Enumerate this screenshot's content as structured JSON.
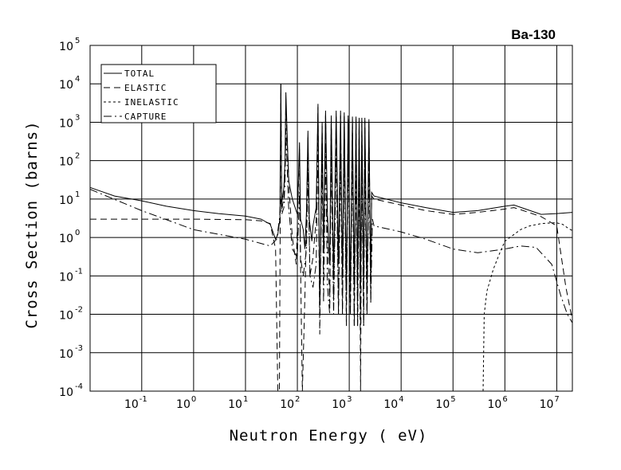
{
  "chart_data": {
    "type": "line",
    "title": "Ba-130",
    "xlabel": "Neutron Energy ( eV)",
    "ylabel": "Cross Section (barns)",
    "xscale": "log",
    "yscale": "log",
    "xlim": [
      0.0101,
      20000000
    ],
    "ylim": [
      0.0001,
      100000
    ],
    "grid": true,
    "legend_position": "top-left",
    "x_ticks": [
      {
        "base": "10",
        "exp": "-1",
        "value": 0.1
      },
      {
        "base": "10",
        "exp": "0",
        "value": 1
      },
      {
        "base": "10",
        "exp": "1",
        "value": 10
      },
      {
        "base": "10",
        "exp": "2",
        "value": 100
      },
      {
        "base": "10",
        "exp": "3",
        "value": 1000
      },
      {
        "base": "10",
        "exp": "4",
        "value": 10000
      },
      {
        "base": "10",
        "exp": "5",
        "value": 100000
      },
      {
        "base": "10",
        "exp": "6",
        "value": 1000000
      },
      {
        "base": "10",
        "exp": "7",
        "value": 10000000
      }
    ],
    "y_ticks": [
      {
        "base": "10",
        "exp": "5",
        "value": 100000
      },
      {
        "base": "10",
        "exp": "4",
        "value": 10000
      },
      {
        "base": "10",
        "exp": "3",
        "value": 1000
      },
      {
        "base": "10",
        "exp": "2",
        "value": 100
      },
      {
        "base": "10",
        "exp": "1",
        "value": 10
      },
      {
        "base": "10",
        "exp": "0",
        "value": 1
      },
      {
        "base": "10",
        "exp": "-1",
        "value": 0.1
      },
      {
        "base": "10",
        "exp": "-2",
        "value": 0.01
      },
      {
        "base": "10",
        "exp": "-3",
        "value": 0.001
      },
      {
        "base": "10",
        "exp": "-4",
        "value": 0.0001
      }
    ],
    "series": [
      {
        "name": "TOTAL",
        "dash": "",
        "points": [
          [
            0.0101,
            20
          ],
          [
            0.03,
            12
          ],
          [
            0.1,
            9
          ],
          [
            0.3,
            6.5
          ],
          [
            1,
            5
          ],
          [
            3,
            4.2
          ],
          [
            10,
            3.6
          ],
          [
            20,
            3
          ],
          [
            30,
            2.2
          ],
          [
            38,
            0.9
          ],
          [
            42,
            1.2
          ],
          [
            46,
            3
          ],
          [
            48,
            10000
          ],
          [
            50,
            8
          ],
          [
            55,
            20
          ],
          [
            58,
            120
          ],
          [
            60,
            6000
          ],
          [
            63,
            700
          ],
          [
            68,
            30
          ],
          [
            80,
            10
          ],
          [
            100,
            4
          ],
          [
            110,
            300
          ],
          [
            115,
            3
          ],
          [
            130,
            1.6
          ],
          [
            140,
            0.5
          ],
          [
            150,
            5
          ],
          [
            160,
            600
          ],
          [
            170,
            3
          ],
          [
            190,
            0.8
          ],
          [
            200,
            2
          ],
          [
            230,
            6
          ],
          [
            250,
            3000
          ],
          [
            270,
            0.02
          ],
          [
            300,
            1000
          ],
          [
            320,
            0.4
          ],
          [
            350,
            2000
          ],
          [
            380,
            4
          ],
          [
            420,
            0.2
          ],
          [
            450,
            1500
          ],
          [
            500,
            0.1
          ],
          [
            560,
            2000
          ],
          [
            620,
            0.2
          ],
          [
            680,
            2000
          ],
          [
            740,
            0.1
          ],
          [
            800,
            1800
          ],
          [
            880,
            0.05
          ],
          [
            950,
            1500
          ],
          [
            1050,
            0.05
          ],
          [
            1150,
            1400
          ],
          [
            1250,
            0.05
          ],
          [
            1350,
            1400
          ],
          [
            1450,
            0.05
          ],
          [
            1550,
            1300
          ],
          [
            1650,
            0.05
          ],
          [
            1750,
            1300
          ],
          [
            1900,
            0.05
          ],
          [
            2000,
            1300
          ],
          [
            2200,
            0.05
          ],
          [
            2400,
            1200
          ],
          [
            2600,
            0.06
          ],
          [
            2700,
            15
          ],
          [
            3000,
            12
          ],
          [
            10000,
            8
          ],
          [
            30000,
            6
          ],
          [
            100000,
            4.5
          ],
          [
            300000,
            5
          ],
          [
            1000000,
            6.5
          ],
          [
            1500000,
            7
          ],
          [
            2500000,
            5.5
          ],
          [
            5000000,
            4
          ],
          [
            10000000,
            4.2
          ],
          [
            20000000,
            4.5
          ]
        ]
      },
      {
        "name": "ELASTIC",
        "dash": "8,5",
        "points": [
          [
            0.0101,
            3
          ],
          [
            0.1,
            3
          ],
          [
            1,
            3
          ],
          [
            10,
            2.9
          ],
          [
            20,
            2.7
          ],
          [
            30,
            2.3
          ],
          [
            38,
            0.5
          ],
          [
            42,
            0.0001
          ],
          [
            45,
            0.0001
          ],
          [
            48,
            10000
          ],
          [
            50,
            5
          ],
          [
            55,
            12
          ],
          [
            58,
            90
          ],
          [
            60,
            4000
          ],
          [
            63,
            400
          ],
          [
            70,
            15
          ],
          [
            80,
            1
          ],
          [
            95,
            0.2
          ],
          [
            110,
            200
          ],
          [
            115,
            0.2
          ],
          [
            125,
            0.0001
          ],
          [
            140,
            0.03
          ],
          [
            150,
            2
          ],
          [
            160,
            400
          ],
          [
            175,
            0.1
          ],
          [
            200,
            0.3
          ],
          [
            230,
            3
          ],
          [
            250,
            2500
          ],
          [
            270,
            0.003
          ],
          [
            300,
            800
          ],
          [
            320,
            0.1
          ],
          [
            350,
            1500
          ],
          [
            380,
            1
          ],
          [
            420,
            0.02
          ],
          [
            450,
            1200
          ],
          [
            500,
            0.02
          ],
          [
            560,
            1500
          ],
          [
            620,
            0.01
          ],
          [
            680,
            1500
          ],
          [
            740,
            0.01
          ],
          [
            800,
            1500
          ],
          [
            880,
            0.005
          ],
          [
            950,
            1200
          ],
          [
            1050,
            0.01
          ],
          [
            1150,
            1200
          ],
          [
            1250,
            0.005
          ],
          [
            1350,
            1200
          ],
          [
            1450,
            0.005
          ],
          [
            1550,
            1100
          ],
          [
            1650,
            0.0001
          ],
          [
            1750,
            1100
          ],
          [
            1900,
            0.005
          ],
          [
            2000,
            1100
          ],
          [
            2200,
            0.01
          ],
          [
            2400,
            1000
          ],
          [
            2600,
            0.02
          ],
          [
            2700,
            12
          ],
          [
            3000,
            10
          ],
          [
            10000,
            7
          ],
          [
            30000,
            5
          ],
          [
            100000,
            4
          ],
          [
            300000,
            4.5
          ],
          [
            1000000,
            5.5
          ],
          [
            1500000,
            6
          ],
          [
            2500000,
            4.8
          ],
          [
            5000000,
            3.5
          ],
          [
            10000000,
            2
          ],
          [
            15000000,
            0.05
          ],
          [
            20000000,
            0.007
          ]
        ]
      },
      {
        "name": "INELASTIC",
        "dash": "3,3",
        "points": [
          [
            380000,
            0.0001
          ],
          [
            400000,
            0.01
          ],
          [
            450000,
            0.04
          ],
          [
            600000,
            0.15
          ],
          [
            800000,
            0.4
          ],
          [
            1000000,
            0.8
          ],
          [
            1500000,
            1.2
          ],
          [
            2000000,
            1.6
          ],
          [
            3000000,
            2
          ],
          [
            5000000,
            2.3
          ],
          [
            8000000,
            2.4
          ],
          [
            10000000,
            2.4
          ],
          [
            13000000,
            2.2
          ],
          [
            16000000,
            1.8
          ],
          [
            20000000,
            1.5
          ]
        ]
      },
      {
        "name": "CAPTURE",
        "dash": "10,4,2,4",
        "points": [
          [
            0.0101,
            18
          ],
          [
            0.1,
            5
          ],
          [
            1,
            1.6
          ],
          [
            10,
            0.9
          ],
          [
            20,
            0.7
          ],
          [
            30,
            0.6
          ],
          [
            40,
            0.9
          ],
          [
            45,
            3
          ],
          [
            48,
            10
          ],
          [
            50,
            4
          ],
          [
            55,
            6
          ],
          [
            58,
            30
          ],
          [
            60,
            700
          ],
          [
            63,
            90
          ],
          [
            68,
            6
          ],
          [
            80,
            0.5
          ],
          [
            100,
            0.3
          ],
          [
            110,
            15
          ],
          [
            115,
            0.3
          ],
          [
            130,
            0.1
          ],
          [
            150,
            0.5
          ],
          [
            160,
            60
          ],
          [
            175,
            0.1
          ],
          [
            200,
            0.05
          ],
          [
            230,
            0.2
          ],
          [
            250,
            300
          ],
          [
            270,
            0.01
          ],
          [
            300,
            100
          ],
          [
            320,
            0.02
          ],
          [
            350,
            200
          ],
          [
            380,
            0.05
          ],
          [
            420,
            0.01
          ],
          [
            450,
            150
          ],
          [
            500,
            0.01
          ],
          [
            560,
            200
          ],
          [
            620,
            0.01
          ],
          [
            680,
            150
          ],
          [
            740,
            0.01
          ],
          [
            800,
            200
          ],
          [
            880,
            0.01
          ],
          [
            950,
            150
          ],
          [
            1050,
            0.01
          ],
          [
            1150,
            150
          ],
          [
            1250,
            0.005
          ],
          [
            1350,
            100
          ],
          [
            1450,
            0.005
          ],
          [
            1550,
            100
          ],
          [
            1650,
            0.003
          ],
          [
            1750,
            100
          ],
          [
            1900,
            0.005
          ],
          [
            2000,
            100
          ],
          [
            2200,
            0.01
          ],
          [
            2400,
            80
          ],
          [
            2600,
            0.02
          ],
          [
            2800,
            3
          ],
          [
            3000,
            2
          ],
          [
            10000,
            1.4
          ],
          [
            30000,
            0.9
          ],
          [
            100000,
            0.5
          ],
          [
            300000,
            0.4
          ],
          [
            1000000,
            0.5
          ],
          [
            2000000,
            0.6
          ],
          [
            4000000,
            0.55
          ],
          [
            8000000,
            0.2
          ],
          [
            12000000,
            0.03
          ],
          [
            16000000,
            0.01
          ],
          [
            20000000,
            0.006
          ]
        ]
      }
    ]
  }
}
